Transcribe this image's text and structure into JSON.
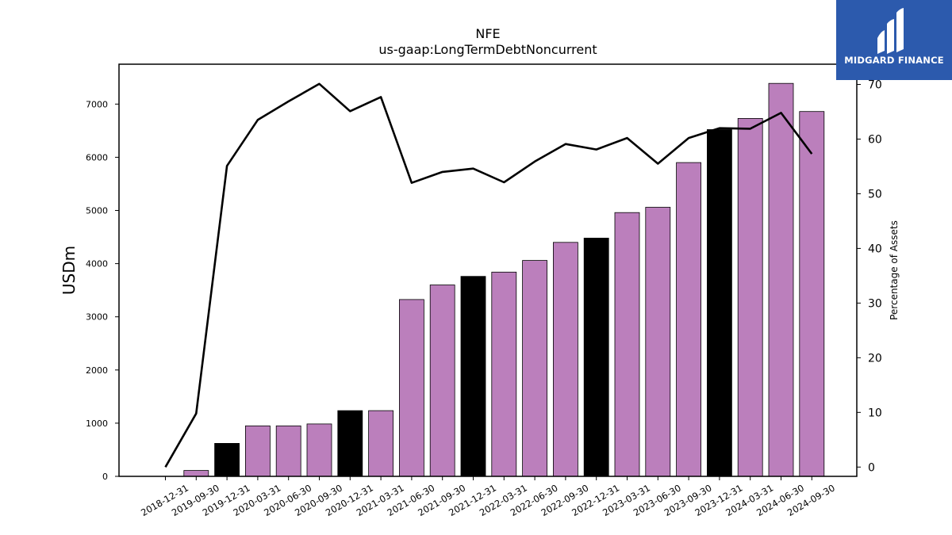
{
  "chart_data": {
    "type": "bar",
    "title": "NFE",
    "subtitle": "us-gaap:LongTermDebtNoncurrent",
    "ylabel": "USDm",
    "y2label": "Percentage of Assets",
    "ylim": [
      0,
      7750
    ],
    "y2lim": [
      -1.7,
      73.7
    ],
    "yticks": [
      0,
      1000,
      2000,
      3000,
      4000,
      5000,
      6000,
      7000
    ],
    "y2ticks": [
      0,
      10,
      20,
      30,
      40,
      50,
      60,
      70
    ],
    "categories": [
      "2018-12-31",
      "2019-09-30",
      "2019-12-31",
      "2020-03-31",
      "2020-06-30",
      "2020-09-30",
      "2020-12-31",
      "2021-03-31",
      "2021-06-30",
      "2021-09-30",
      "2021-12-31",
      "2022-03-31",
      "2022-06-30",
      "2022-09-30",
      "2022-12-31",
      "2023-03-31",
      "2023-06-30",
      "2023-09-30",
      "2023-12-31",
      "2024-03-31",
      "2024-06-30",
      "2024-09-30"
    ],
    "values": [
      0,
      110,
      620,
      950,
      950,
      985,
      1235,
      1235,
      3325,
      3600,
      3760,
      3840,
      4060,
      4400,
      4480,
      4960,
      5060,
      5900,
      6520,
      6730,
      7390,
      6860
    ],
    "bar_colors": [
      "#bb7fbc",
      "#bb7fbc",
      "#000000",
      "#bb7fbc",
      "#bb7fbc",
      "#bb7fbc",
      "#000000",
      "#bb7fbc",
      "#bb7fbc",
      "#bb7fbc",
      "#000000",
      "#bb7fbc",
      "#bb7fbc",
      "#bb7fbc",
      "#000000",
      "#bb7fbc",
      "#bb7fbc",
      "#bb7fbc",
      "#000000",
      "#bb7fbc",
      "#bb7fbc",
      "#bb7fbc"
    ],
    "series": [
      {
        "type": "line",
        "axis": "right",
        "values": [
          0,
          9.8,
          55.1,
          63.5,
          66.9,
          70.1,
          65.1,
          67.7,
          52.0,
          54.0,
          54.6,
          52.1,
          55.9,
          59.1,
          58.1,
          60.2,
          55.5,
          60.2,
          62.0,
          61.9,
          64.8,
          57.3
        ]
      }
    ],
    "legend": "none",
    "grid": false,
    "colors": {
      "bar": "#bb7fbc",
      "bar_highlight": "#000000",
      "line": "#000000"
    }
  },
  "logo": {
    "text": "MIDGARD FINANCE",
    "background": "#2c5aad"
  }
}
